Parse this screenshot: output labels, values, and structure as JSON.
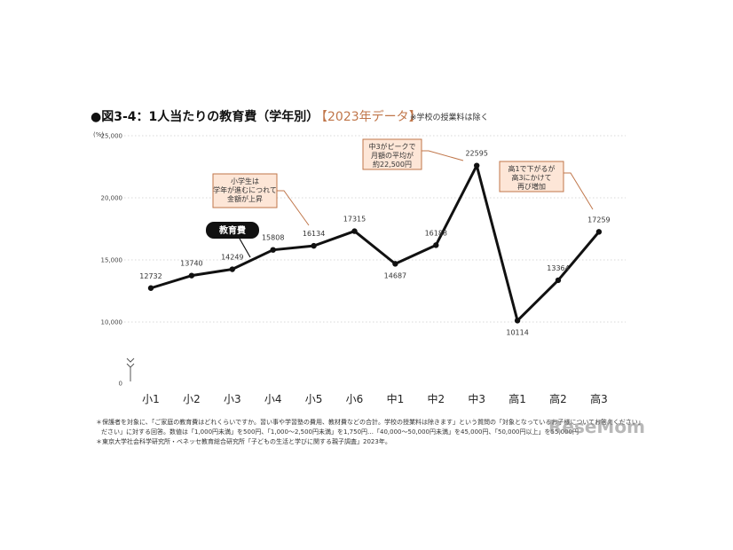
{
  "chart_data": {
    "type": "line",
    "title": "●図3-4：1人当たりの教育費（学年別）",
    "subtitle": "【2023年データ】",
    "note": "※学校の授業料は除く",
    "ylabel": "(%)",
    "ylim": [
      0,
      25000
    ],
    "yticks": [
      "25,000",
      "20,000",
      "15,000",
      "10,000",
      "0"
    ],
    "grid": true,
    "categories": [
      "小1",
      "小2",
      "小3",
      "小4",
      "小5",
      "小6",
      "中1",
      "中2",
      "中3",
      "高1",
      "高2",
      "高3"
    ],
    "series": [
      {
        "name": "教育費",
        "values": [
          12732,
          13740,
          14249,
          15808,
          16134,
          17315,
          14687,
          16188,
          22595,
          10114,
          13364,
          17259
        ]
      }
    ],
    "value_labels": [
      "12732",
      "13740",
      "14249",
      "15808",
      "16134",
      "17315",
      "14687",
      "16188",
      "22595",
      "10114",
      "13364",
      "17259"
    ],
    "annotations": [
      {
        "lines": [
          "小学生は",
          "学年が進むにつれて",
          "金額が上昇"
        ]
      },
      {
        "lines": [
          "中3がピークで",
          "月額の平均が",
          "約22,500円"
        ]
      },
      {
        "lines": [
          "高1で下がるが",
          "高3にかけて",
          "再び増加"
        ]
      }
    ]
  },
  "footnotes": [
    "＊保護者を対象に、「ご家庭の教育費はどれくらいですか。習い事や学習塾の費用、教材費などの合計。学校の授業料は除きます」という質問の「対象となっているお子様についてお答えください」",
    "ださい」に対する回答。数値は「1,000円未満」を500円、「1,000〜2,500円未満」を1,750円…「40,000〜50,000円未満」を45,000円、「50,000円以上」を55,000円",
    "＊東京大学社会科学研究所・ベネッセ教育総合研究所「子どもの生活と学びに関する親子調査」2023年。"
  ],
  "watermark": "ReseMom",
  "colors": {
    "line": "#111111",
    "accent": "#c0764a",
    "callout_fill": "#fde6d7",
    "grid": "#cccccc"
  }
}
